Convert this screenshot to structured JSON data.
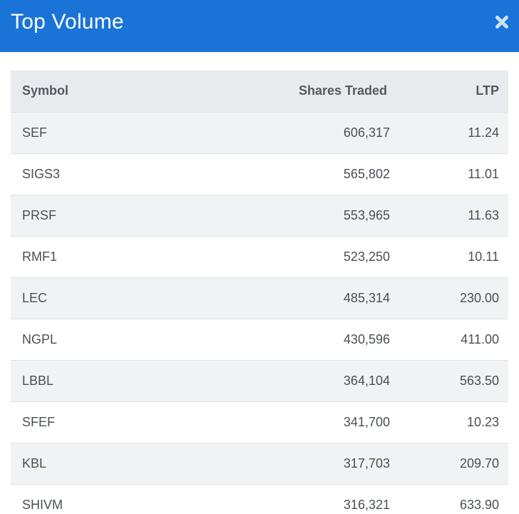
{
  "modal": {
    "title": "Top Volume",
    "close_icon": "close-x-icon",
    "accent_color": "#1a73d6"
  },
  "table": {
    "columns": [
      "Symbol",
      "Shares Traded",
      "LTP"
    ],
    "rows": [
      {
        "symbol": "SEF",
        "shares": "606,317",
        "ltp": "11.24"
      },
      {
        "symbol": "SIGS3",
        "shares": "565,802",
        "ltp": "11.01"
      },
      {
        "symbol": "PRSF",
        "shares": "553,965",
        "ltp": "11.63"
      },
      {
        "symbol": "RMF1",
        "shares": "523,250",
        "ltp": "10.11"
      },
      {
        "symbol": "LEC",
        "shares": "485,314",
        "ltp": "230.00"
      },
      {
        "symbol": "NGPL",
        "shares": "430,596",
        "ltp": "411.00"
      },
      {
        "symbol": "LBBL",
        "shares": "364,104",
        "ltp": "563.50"
      },
      {
        "symbol": "SFEF",
        "shares": "341,700",
        "ltp": "10.23"
      },
      {
        "symbol": "KBL",
        "shares": "317,703",
        "ltp": "209.70"
      },
      {
        "symbol": "SHIVM",
        "shares": "316,321",
        "ltp": "633.90"
      }
    ]
  }
}
